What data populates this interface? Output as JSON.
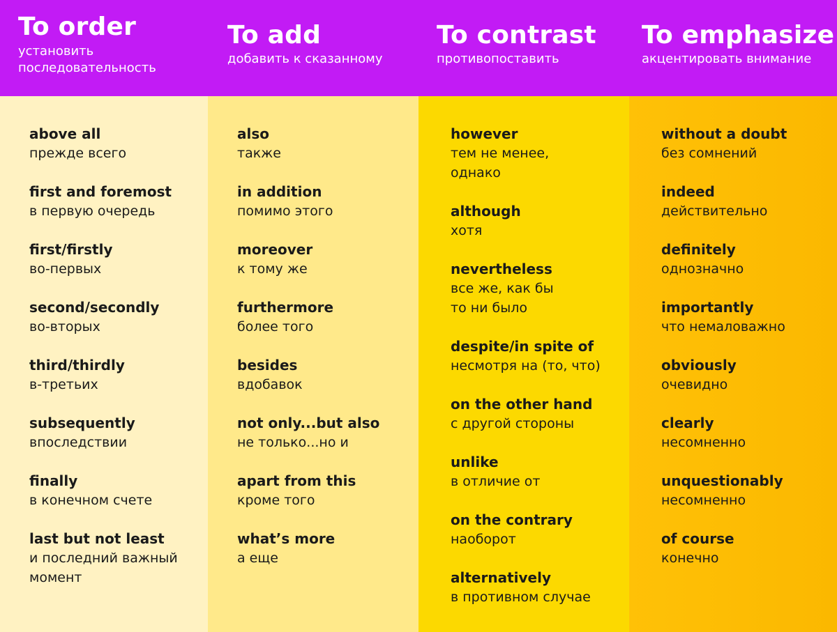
{
  "columns": [
    {
      "title": "To order",
      "subtitle": "установить последовательность",
      "items": [
        {
          "en": "above all",
          "ru": "прежде всего"
        },
        {
          "en": "first and foremost",
          "ru": "в первую очередь"
        },
        {
          "en": "first/firstly",
          "ru": "во-первых"
        },
        {
          "en": "second/secondly",
          "ru": "во-вторых"
        },
        {
          "en": "third/thirdly",
          "ru": "в-третьих"
        },
        {
          "en": "subsequently",
          "ru": "впоследствии"
        },
        {
          "en": "finally",
          "ru": "в конечном счете"
        },
        {
          "en": "last but not least",
          "ru": "и последний важный момент"
        }
      ]
    },
    {
      "title": "To add",
      "subtitle": "добавить к сказанному",
      "items": [
        {
          "en": "also",
          "ru": "также"
        },
        {
          "en": "in addition",
          "ru": "помимо этого"
        },
        {
          "en": "moreover",
          "ru": "к тому же"
        },
        {
          "en": "furthermore",
          "ru": "более того"
        },
        {
          "en": "besides",
          "ru": "вдобавок"
        },
        {
          "en": "not only...but also",
          "ru": "не только...но и"
        },
        {
          "en": "apart from this",
          "ru": "кроме того"
        },
        {
          "en": "what’s more",
          "ru": "а еще"
        }
      ]
    },
    {
      "title": "To contrast",
      "subtitle": "противопоставить",
      "items": [
        {
          "en": "however",
          "ru": "тем не менее, однако"
        },
        {
          "en": "although",
          "ru": "хотя"
        },
        {
          "en": "nevertheless",
          "ru": "все же, как бы то ни было"
        },
        {
          "en": "despite/in spite of",
          "ru": "несмотря на (то, что)"
        },
        {
          "en": "on the other hand",
          "ru": "с другой стороны"
        },
        {
          "en": "unlike",
          "ru": "в отличие от"
        },
        {
          "en": "on the contrary",
          "ru": "наоборот"
        },
        {
          "en": "alternatively",
          "ru": "в противном случае"
        }
      ]
    },
    {
      "title": "To emphasize",
      "subtitle": "акцентировать внимание",
      "items": [
        {
          "en": "without a doubt",
          "ru": "без сомнений"
        },
        {
          "en": "indeed",
          "ru": "действительно"
        },
        {
          "en": "definitely",
          "ru": "однозначно"
        },
        {
          "en": "importantly",
          "ru": "что немаловажно"
        },
        {
          "en": "obviously",
          "ru": "очевидно"
        },
        {
          "en": "clearly",
          "ru": "несомненно"
        },
        {
          "en": "unquestionably",
          "ru": "несомненно"
        },
        {
          "en": "of course",
          "ru": "конечно"
        }
      ]
    }
  ],
  "colors": {
    "header": "#c21bf5",
    "col1": "#fff2c2",
    "col2": "#ffe98a",
    "col3": "#fcd900",
    "col4": "#ffc107"
  }
}
